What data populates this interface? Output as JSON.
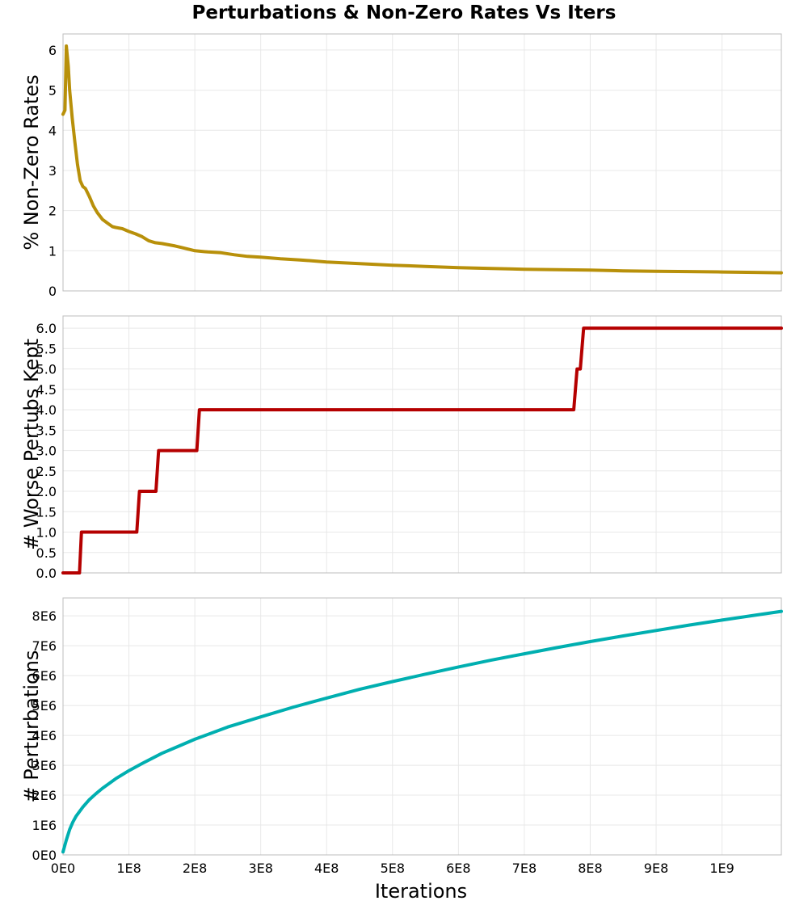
{
  "chart_data": {
    "title": "Perturbations & Non-Zero Rates Vs Iters",
    "x_axis": {
      "label": "Iterations",
      "ticks": [
        0,
        100000000,
        200000000,
        300000000,
        400000000,
        500000000,
        600000000,
        700000000,
        800000000,
        900000000,
        1000000000
      ],
      "tick_labels": [
        "0E0",
        "1E8",
        "2E8",
        "3E8",
        "4E8",
        "5E8",
        "6E8",
        "7E8",
        "8E8",
        "9E8",
        "1E9"
      ],
      "range": [
        0,
        1090000000
      ]
    },
    "panels": [
      {
        "type": "line",
        "ylabel": "% Non-Zero Rates",
        "color": "#B8900A",
        "ylim": [
          0,
          6.4
        ],
        "yticks": [
          0,
          1,
          2,
          3,
          4,
          5,
          6
        ],
        "ytick_labels": [
          "0",
          "1",
          "2",
          "3",
          "4",
          "5",
          "6"
        ],
        "grid": true,
        "x": [
          0,
          3000000,
          5000000,
          8000000,
          10000000,
          14000000,
          18000000,
          22000000,
          26000000,
          30000000,
          34000000,
          40000000,
          46000000,
          52000000,
          60000000,
          68000000,
          75000000,
          80000000,
          90000000,
          100000000,
          110000000,
          120000000,
          130000000,
          140000000,
          150000000,
          160000000,
          170000000,
          180000000,
          200000000,
          220000000,
          240000000,
          260000000,
          280000000,
          300000000,
          330000000,
          360000000,
          400000000,
          450000000,
          500000000,
          550000000,
          600000000,
          650000000,
          700000000,
          750000000,
          800000000,
          850000000,
          900000000,
          950000000,
          1000000000,
          1050000000,
          1090000000
        ],
        "y": [
          4.4,
          4.5,
          6.1,
          5.6,
          5.0,
          4.3,
          3.7,
          3.15,
          2.75,
          2.6,
          2.55,
          2.35,
          2.12,
          1.95,
          1.78,
          1.68,
          1.6,
          1.58,
          1.55,
          1.48,
          1.42,
          1.35,
          1.25,
          1.2,
          1.18,
          1.15,
          1.12,
          1.08,
          1.0,
          0.97,
          0.95,
          0.9,
          0.86,
          0.84,
          0.8,
          0.77,
          0.72,
          0.68,
          0.64,
          0.61,
          0.58,
          0.56,
          0.54,
          0.53,
          0.52,
          0.5,
          0.49,
          0.48,
          0.47,
          0.46,
          0.45
        ]
      },
      {
        "type": "line",
        "ylabel": "# Worse Pertubs Kept",
        "color": "#B50000",
        "ylim": [
          0,
          6.3
        ],
        "yticks": [
          0,
          0.5,
          1.0,
          1.5,
          2.0,
          2.5,
          3.0,
          3.5,
          4.0,
          4.5,
          5.0,
          5.5,
          6.0
        ],
        "ytick_labels": [
          "0.0",
          "0.5",
          "1.0",
          "1.5",
          "2.0",
          "2.5",
          "3.0",
          "3.5",
          "4.0",
          "4.5",
          "5.0",
          "5.5",
          "6.0"
        ],
        "grid": true,
        "x": [
          0,
          25000000,
          28000000,
          112000000,
          116000000,
          141000000,
          145000000,
          203000000,
          207000000,
          775000000,
          780000000,
          785000000,
          790000000,
          1090000000
        ],
        "y": [
          0,
          0,
          1,
          1,
          2,
          2,
          3,
          3,
          4,
          4,
          5,
          5,
          6,
          6
        ]
      },
      {
        "type": "line",
        "ylabel": "# Perturbations",
        "color": "#00AFB0",
        "ylim": [
          0,
          8600000
        ],
        "yticks": [
          0,
          1000000,
          2000000,
          3000000,
          4000000,
          5000000,
          6000000,
          7000000,
          8000000
        ],
        "ytick_labels": [
          "0E0",
          "1E6",
          "2E6",
          "3E6",
          "4E6",
          "5E6",
          "6E6",
          "7E6",
          "8E6"
        ],
        "grid": true,
        "x": [
          0,
          5000000,
          10000000,
          15000000,
          20000000,
          30000000,
          40000000,
          50000000,
          60000000,
          80000000,
          100000000,
          120000000,
          150000000,
          180000000,
          200000000,
          250000000,
          300000000,
          350000000,
          400000000,
          450000000,
          500000000,
          550000000,
          600000000,
          650000000,
          700000000,
          750000000,
          800000000,
          850000000,
          900000000,
          950000000,
          1000000000,
          1050000000,
          1090000000
        ],
        "y": [
          100000,
          500000,
          850000,
          1100000,
          1300000,
          1600000,
          1850000,
          2050000,
          2230000,
          2550000,
          2820000,
          3060000,
          3400000,
          3680000,
          3870000,
          4280000,
          4620000,
          4950000,
          5250000,
          5540000,
          5800000,
          6050000,
          6290000,
          6520000,
          6730000,
          6940000,
          7140000,
          7330000,
          7510000,
          7690000,
          7860000,
          8020000,
          8150000
        ]
      }
    ]
  }
}
